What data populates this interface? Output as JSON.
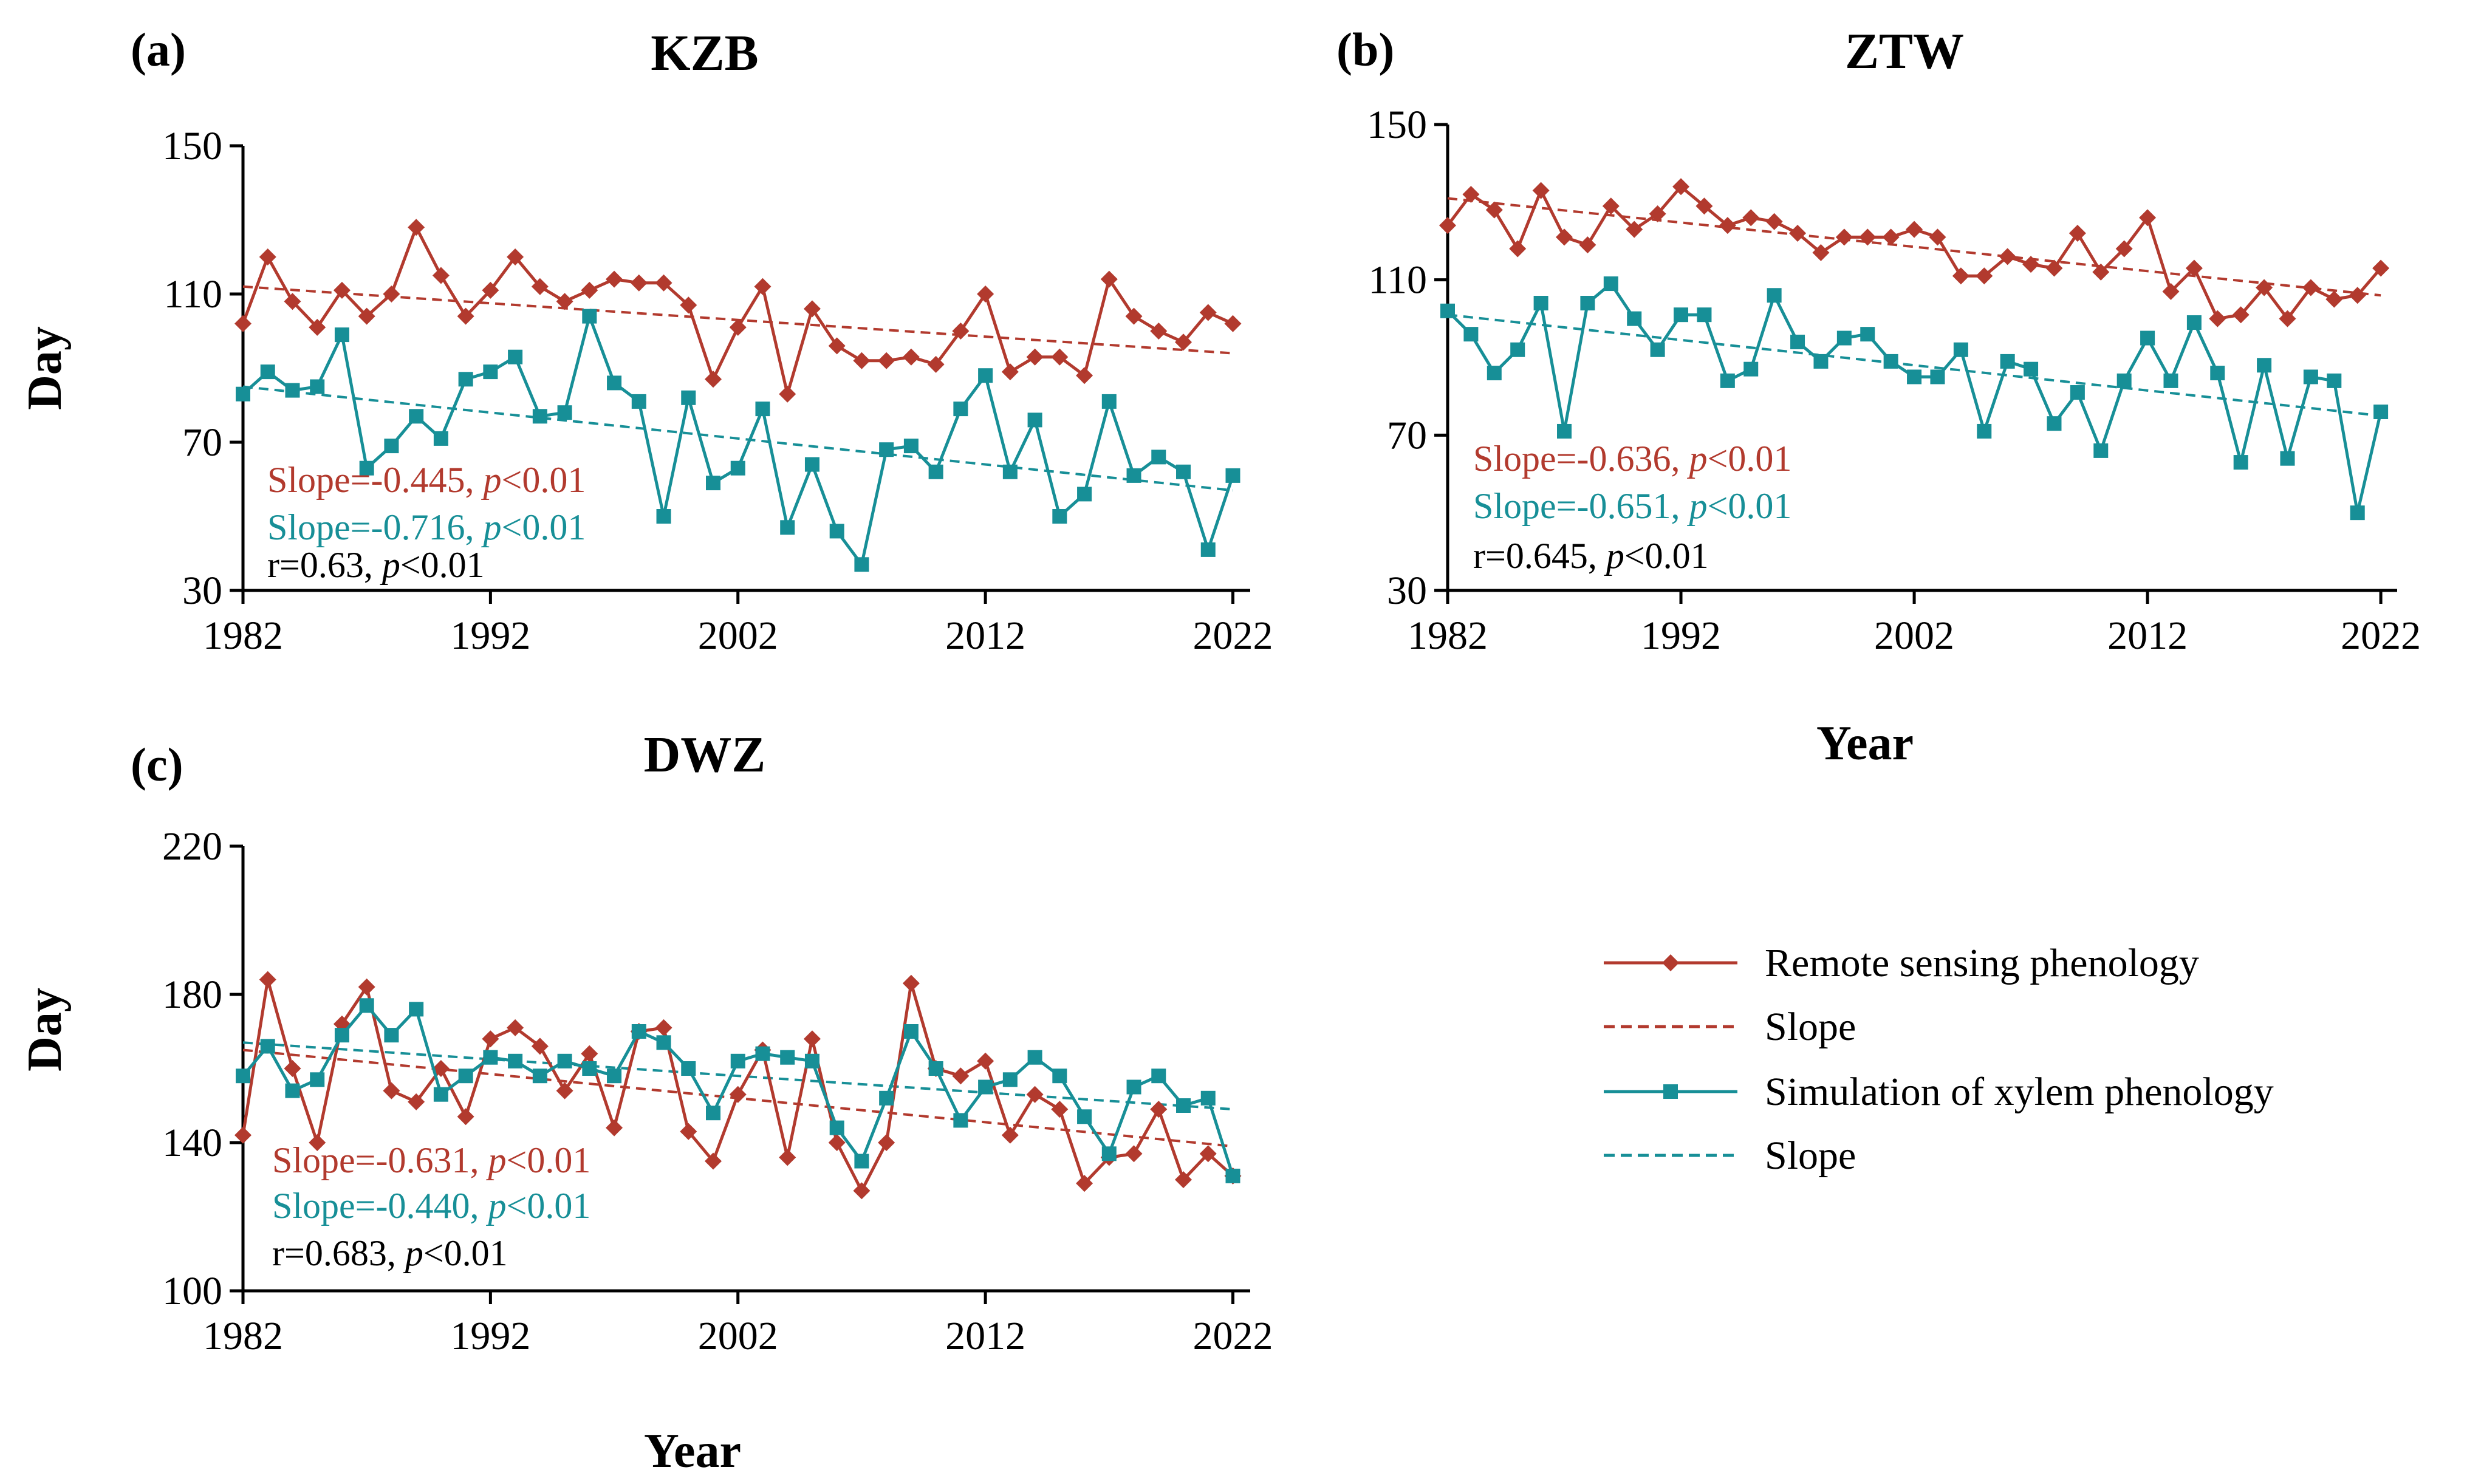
{
  "colors": {
    "remote": "#b23a2e",
    "xylem": "#178f97",
    "axis": "#000000"
  },
  "legend": [
    {
      "label": "Remote sensing phenology",
      "color": "#b23a2e",
      "style": "solid-diamond"
    },
    {
      "label": "Slope",
      "color": "#b23a2e",
      "style": "dashed"
    },
    {
      "label": "Simulation of xylem phenology",
      "color": "#178f97",
      "style": "solid-square"
    },
    {
      "label": "Slope",
      "color": "#178f97",
      "style": "dashed"
    }
  ],
  "chart_data": [
    {
      "type": "line",
      "panel": "(a)",
      "title": "KZB",
      "xlabel": "",
      "ylabel": "Day",
      "ylim": [
        30,
        150
      ],
      "yticks": [
        30,
        70,
        110,
        150
      ],
      "xticks": [
        1982,
        1992,
        2002,
        2012,
        2022
      ],
      "x": [
        1982,
        1983,
        1984,
        1985,
        1986,
        1987,
        1988,
        1989,
        1990,
        1991,
        1992,
        1993,
        1994,
        1995,
        1996,
        1997,
        1998,
        1999,
        2000,
        2001,
        2002,
        2003,
        2004,
        2005,
        2006,
        2007,
        2008,
        2009,
        2010,
        2011,
        2012,
        2013,
        2014,
        2015,
        2016,
        2017,
        2018,
        2019,
        2020,
        2021,
        2022
      ],
      "series": [
        {
          "name": "Remote sensing phenology",
          "color": "#b23a2e",
          "marker": "diamond",
          "values": [
            102,
            120,
            108,
            101,
            111,
            104,
            110,
            128,
            115,
            104,
            111,
            120,
            112,
            108,
            111,
            114,
            113,
            113,
            107,
            87,
            101,
            112,
            83,
            106,
            96,
            92,
            92,
            93,
            91,
            100,
            110,
            89,
            93,
            93,
            88,
            114,
            104,
            100,
            97,
            105,
            102
          ]
        },
        {
          "name": "Simulation of xylem phenology",
          "color": "#178f97",
          "marker": "square",
          "values": [
            83,
            89,
            84,
            85,
            99,
            63,
            69,
            77,
            71,
            87,
            89,
            93,
            77,
            78,
            104,
            86,
            81,
            50,
            82,
            59,
            63,
            79,
            47,
            64,
            46,
            37,
            68,
            69,
            62,
            79,
            88,
            62,
            76,
            50,
            56,
            81,
            61,
            66,
            62,
            41,
            61
          ]
        }
      ],
      "trends": [
        {
          "color": "#b23a2e",
          "start": [
            1982,
            112
          ],
          "end": [
            2022,
            94
          ]
        },
        {
          "color": "#178f97",
          "start": [
            1982,
            85
          ],
          "end": [
            2022,
            57
          ]
        }
      ],
      "annotations": [
        {
          "text": "Slope=-0.445, ",
          "italic": "p",
          "rest": "<0.01",
          "color": "#b23a2e"
        },
        {
          "text": "Slope=-0.716, ",
          "italic": "p",
          "rest": "<0.01",
          "color": "#178f97"
        },
        {
          "text": "r=0.63, ",
          "italic": "p",
          "rest": "<0.01",
          "color": "#000000"
        }
      ]
    },
    {
      "type": "line",
      "panel": "(b)",
      "title": "ZTW",
      "xlabel": "Year",
      "ylabel": "",
      "ylim": [
        30,
        150
      ],
      "yticks": [
        30,
        70,
        110,
        150
      ],
      "xticks": [
        1982,
        1992,
        2002,
        2012,
        2022
      ],
      "x": [
        1982,
        1983,
        1984,
        1985,
        1986,
        1987,
        1988,
        1989,
        1990,
        1991,
        1992,
        1993,
        1994,
        1995,
        1996,
        1997,
        1998,
        1999,
        2000,
        2001,
        2002,
        2003,
        2004,
        2005,
        2006,
        2007,
        2008,
        2009,
        2010,
        2011,
        2012,
        2013,
        2014,
        2015,
        2016,
        2017,
        2018,
        2019,
        2020,
        2021,
        2022
      ],
      "series": [
        {
          "name": "Remote sensing phenology",
          "color": "#b23a2e",
          "marker": "diamond",
          "values": [
            124,
            132,
            128,
            118,
            133,
            121,
            119,
            129,
            123,
            127,
            134,
            129,
            124,
            126,
            125,
            122,
            117,
            121,
            121,
            121,
            123,
            121,
            111,
            111,
            116,
            114,
            113,
            122,
            112,
            118,
            126,
            107,
            113,
            100,
            101,
            108,
            100,
            108,
            105,
            106,
            113
          ]
        },
        {
          "name": "Simulation of xylem phenology",
          "color": "#178f97",
          "marker": "square",
          "values": [
            102,
            96,
            86,
            92,
            104,
            71,
            104,
            109,
            100,
            92,
            101,
            101,
            84,
            87,
            106,
            94,
            89,
            95,
            96,
            89,
            85,
            85,
            92,
            71,
            89,
            87,
            73,
            81,
            66,
            84,
            95,
            84,
            99,
            86,
            63,
            88,
            64,
            85,
            84,
            50,
            76
          ]
        }
      ],
      "trends": [
        {
          "color": "#b23a2e",
          "start": [
            1982,
            131
          ],
          "end": [
            2022,
            106
          ]
        },
        {
          "color": "#178f97",
          "start": [
            1982,
            101
          ],
          "end": [
            2022,
            75
          ]
        }
      ],
      "annotations": [
        {
          "text": "Slope=-0.636, ",
          "italic": "p",
          "rest": "<0.01",
          "color": "#b23a2e"
        },
        {
          "text": "Slope=-0.651, ",
          "italic": "p",
          "rest": "<0.01",
          "color": "#178f97"
        },
        {
          "text": "r=0.645, ",
          "italic": "p",
          "rest": "<0.01",
          "color": "#000000"
        }
      ]
    },
    {
      "type": "line",
      "panel": "(c)",
      "title": "DWZ",
      "xlabel": "Year",
      "ylabel": "Day",
      "ylim": [
        100,
        220
      ],
      "yticks": [
        100,
        140,
        180,
        220
      ],
      "xticks": [
        1982,
        1992,
        2002,
        2012,
        2022
      ],
      "x": [
        1982,
        1983,
        1984,
        1985,
        1986,
        1987,
        1988,
        1989,
        1990,
        1991,
        1992,
        1993,
        1994,
        1995,
        1996,
        1997,
        1998,
        1999,
        2000,
        2001,
        2002,
        2003,
        2004,
        2005,
        2006,
        2007,
        2008,
        2009,
        2010,
        2011,
        2012,
        2013,
        2014,
        2015,
        2016,
        2017,
        2018,
        2019,
        2020,
        2021,
        2022
      ],
      "series": [
        {
          "name": "Remote sensing phenology",
          "color": "#b23a2e",
          "marker": "diamond",
          "values": [
            142,
            184,
            160,
            140,
            172,
            182,
            154,
            151,
            160,
            147,
            168,
            171,
            166,
            154,
            164,
            144,
            170,
            171,
            143,
            135,
            153,
            165,
            136,
            168,
            140,
            127,
            140,
            183,
            160,
            158,
            162,
            142,
            153,
            149,
            129,
            136,
            137,
            149,
            130,
            137,
            131
          ]
        },
        {
          "name": "Simulation of xylem phenology",
          "color": "#178f97",
          "marker": "square",
          "values": [
            158,
            166,
            154,
            157,
            169,
            177,
            169,
            176,
            153,
            158,
            163,
            162,
            158,
            162,
            160,
            158,
            170,
            167,
            160,
            148,
            162,
            164,
            163,
            162,
            144,
            135,
            152,
            170,
            160,
            146,
            155,
            157,
            163,
            158,
            147,
            137,
            155,
            158,
            150,
            152,
            131
          ]
        }
      ],
      "trends": [
        {
          "color": "#b23a2e",
          "start": [
            1982,
            165
          ],
          "end": [
            2022,
            139
          ]
        },
        {
          "color": "#178f97",
          "start": [
            1982,
            167
          ],
          "end": [
            2022,
            149
          ]
        }
      ],
      "annotations": [
        {
          "text": "Slope=-0.631, ",
          "italic": "p",
          "rest": "<0.01",
          "color": "#b23a2e"
        },
        {
          "text": "Slope=-0.440, ",
          "italic": "p",
          "rest": "<0.01",
          "color": "#178f97"
        },
        {
          "text": "r=0.683, ",
          "italic": "p",
          "rest": "<0.01",
          "color": "#000000"
        }
      ]
    }
  ]
}
